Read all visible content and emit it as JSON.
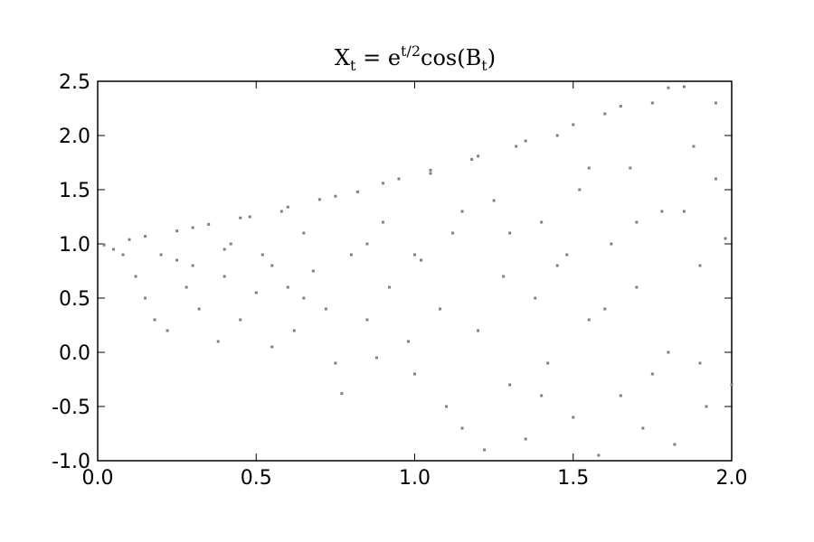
{
  "chart_data": {
    "type": "scatter",
    "title": "X_t = e^{t/2}cos(B_t)",
    "color": "#808080",
    "x": [
      0.02,
      0.05,
      0.08,
      0.1,
      0.12,
      0.15,
      0.18,
      0.2,
      0.22,
      0.25,
      0.28,
      0.3,
      0.32,
      0.35,
      0.38,
      0.4,
      0.42,
      0.45,
      0.48,
      0.5,
      0.52,
      0.55,
      0.58,
      0.6,
      0.62,
      0.65,
      0.68,
      0.7,
      0.72,
      0.75,
      0.77,
      0.8,
      0.82,
      0.85,
      0.88,
      0.9,
      0.92,
      0.95,
      0.98,
      1.0,
      1.02,
      1.05,
      1.08,
      1.1,
      1.12,
      1.15,
      1.18,
      1.2,
      1.22,
      1.25,
      1.28,
      1.3,
      1.32,
      1.35,
      1.38,
      1.4,
      1.42,
      1.45,
      1.48,
      1.5,
      1.52,
      1.55,
      1.58,
      1.6,
      1.62,
      1.65,
      1.68,
      1.7,
      1.72,
      1.75,
      1.78,
      1.8,
      1.82,
      1.85,
      1.88,
      1.9,
      1.92,
      1.95,
      1.98,
      2.0,
      0.15,
      0.3,
      0.45,
      0.6,
      0.75,
      0.9,
      1.05,
      1.2,
      1.35,
      1.5,
      1.65,
      1.8,
      0.25,
      0.4,
      0.55,
      0.65,
      0.85,
      1.0,
      1.15,
      1.3,
      1.45,
      1.55,
      1.7,
      1.85,
      1.95,
      1.9,
      1.6,
      1.4,
      1.75
    ],
    "y": [
      0.99,
      0.95,
      0.9,
      1.04,
      0.7,
      0.5,
      0.3,
      0.9,
      0.2,
      1.12,
      0.6,
      0.8,
      0.4,
      1.18,
      0.1,
      0.7,
      1.0,
      0.3,
      1.25,
      0.55,
      0.9,
      0.05,
      1.3,
      0.6,
      0.2,
      1.1,
      0.75,
      1.41,
      0.4,
      -0.1,
      -0.38,
      0.9,
      1.48,
      0.3,
      -0.05,
      1.2,
      0.6,
      1.6,
      0.1,
      -0.2,
      0.85,
      1.65,
      0.4,
      -0.5,
      1.1,
      -0.7,
      1.78,
      0.2,
      -0.9,
      1.4,
      0.7,
      -0.3,
      1.9,
      -0.8,
      0.5,
      1.2,
      -0.1,
      2.0,
      0.9,
      -0.6,
      1.5,
      0.3,
      -0.95,
      2.2,
      1.0,
      -0.4,
      1.7,
      0.6,
      -0.7,
      2.3,
      1.3,
      0.0,
      -0.85,
      2.45,
      1.9,
      0.8,
      -0.5,
      2.3,
      1.05,
      -0.3,
      1.07,
      1.15,
      1.24,
      1.34,
      1.44,
      1.56,
      1.68,
      1.81,
      1.95,
      2.1,
      2.27,
      2.44,
      0.85,
      0.95,
      0.8,
      0.5,
      1.0,
      0.9,
      1.3,
      1.1,
      0.8,
      1.7,
      1.2,
      1.3,
      1.6,
      -0.1,
      0.4,
      -0.4,
      -0.2
    ],
    "xlim": [
      0,
      2
    ],
    "ylim": [
      -1,
      2.5
    ],
    "xticks": [
      {
        "value": 0,
        "label": "0.0"
      },
      {
        "value": 0.5,
        "label": "0.5"
      },
      {
        "value": 1,
        "label": "1.0"
      },
      {
        "value": 1.5,
        "label": "1.5"
      },
      {
        "value": 2,
        "label": "2.0"
      }
    ],
    "yticks": [
      {
        "value": -1,
        "label": "-1.0"
      },
      {
        "value": -0.5,
        "label": "-0.5"
      },
      {
        "value": 0,
        "label": "0.0"
      },
      {
        "value": 0.5,
        "label": "0.5"
      },
      {
        "value": 1,
        "label": "1.0"
      },
      {
        "value": 1.5,
        "label": "1.5"
      },
      {
        "value": 2,
        "label": "2.0"
      },
      {
        "value": 2.5,
        "label": "2.5"
      }
    ]
  }
}
